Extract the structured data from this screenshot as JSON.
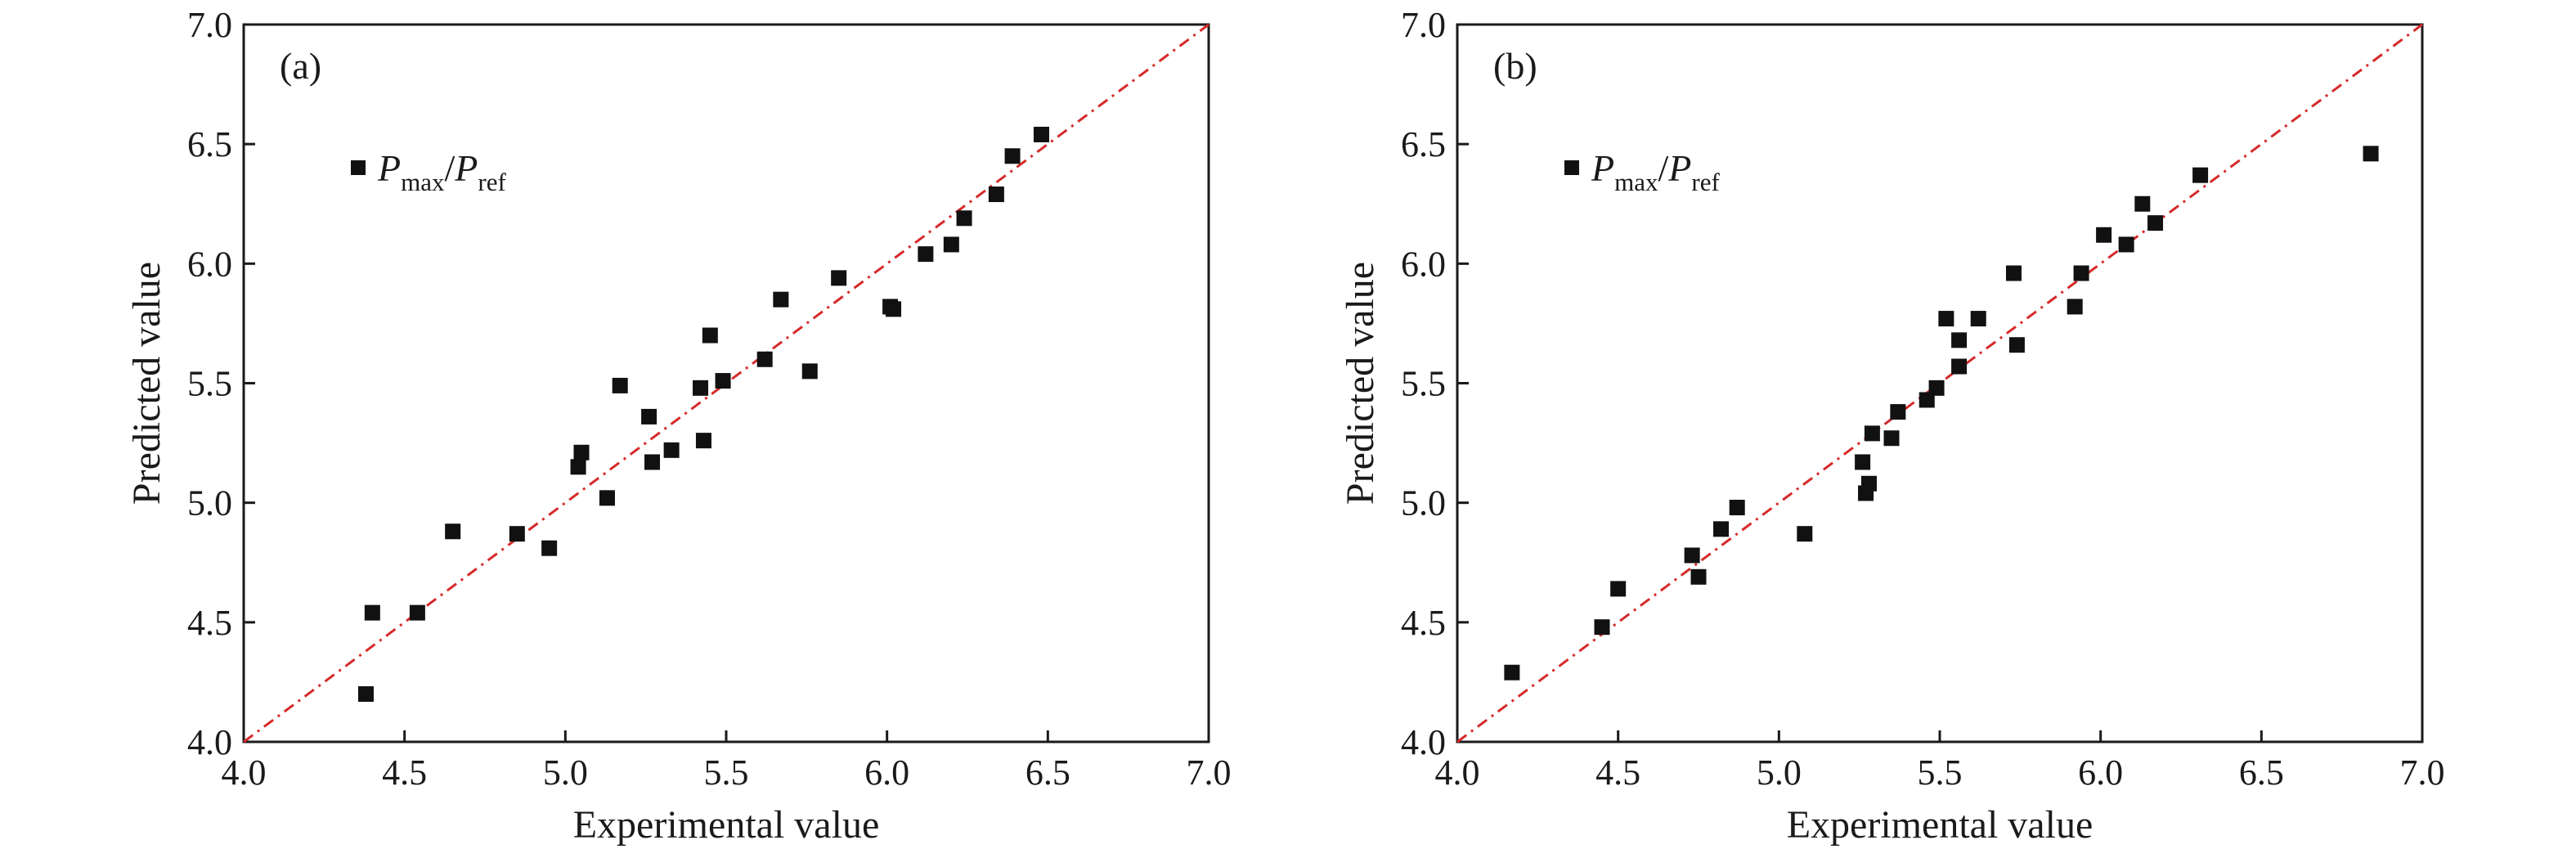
{
  "chart_data": [
    {
      "type": "scatter",
      "panel_label": "(a)",
      "xlabel": "Experimental value",
      "ylabel": "Predicted value",
      "xlim": [
        4.0,
        7.0
      ],
      "ylim": [
        4.0,
        7.0
      ],
      "xticks": [
        "4.0",
        "4.5",
        "5.0",
        "5.5",
        "6.0",
        "6.5",
        "7.0"
      ],
      "yticks": [
        "4.0",
        "4.5",
        "5.0",
        "5.5",
        "6.0",
        "6.5",
        "7.0"
      ],
      "grid": false,
      "legend_position": "upper-left",
      "legend": {
        "symbol": "P",
        "sub1": "max",
        "sep": "/",
        "symbol2": "P",
        "sub2": "ref"
      },
      "reference_line": {
        "from": [
          4.0,
          4.0
        ],
        "to": [
          7.0,
          7.0
        ],
        "style": "dash-dot",
        "color": "#d62a2a"
      },
      "marker_color": "#111111",
      "x": [
        4.38,
        4.4,
        4.54,
        4.65,
        4.85,
        4.95,
        5.04,
        5.05,
        5.13,
        5.17,
        5.26,
        5.27,
        5.33,
        5.42,
        5.43,
        5.45,
        5.49,
        5.62,
        5.67,
        5.76,
        5.85,
        6.01,
        6.02,
        6.12,
        6.2,
        6.24,
        6.34,
        6.39,
        6.48
      ],
      "y": [
        4.2,
        4.54,
        4.54,
        4.88,
        4.87,
        4.81,
        5.15,
        5.21,
        5.02,
        5.49,
        5.36,
        5.17,
        5.22,
        5.48,
        5.26,
        5.7,
        5.51,
        5.6,
        5.85,
        5.55,
        5.94,
        5.82,
        5.81,
        6.04,
        6.08,
        6.19,
        6.29,
        6.45,
        6.54
      ]
    },
    {
      "type": "scatter",
      "panel_label": "(b)",
      "xlabel": "Experimental value",
      "ylabel": "Predicted value",
      "xlim": [
        4.0,
        7.0
      ],
      "ylim": [
        4.0,
        7.0
      ],
      "xticks": [
        "4.0",
        "4.5",
        "5.0",
        "5.5",
        "6.0",
        "6.5",
        "7.0"
      ],
      "yticks": [
        "4.0",
        "4.5",
        "5.0",
        "5.5",
        "6.0",
        "6.5",
        "7.0"
      ],
      "grid": false,
      "legend_position": "upper-left",
      "legend": {
        "symbol": "P",
        "sub1": "max",
        "sep": "/",
        "symbol2": "P",
        "sub2": "ref"
      },
      "reference_line": {
        "from": [
          4.0,
          4.0
        ],
        "to": [
          7.0,
          7.0
        ],
        "style": "dash-dot",
        "color": "#d62a2a"
      },
      "marker_color": "#111111",
      "x": [
        4.17,
        4.45,
        4.5,
        4.73,
        4.75,
        4.82,
        4.87,
        5.08,
        5.26,
        5.27,
        5.28,
        5.29,
        5.35,
        5.37,
        5.46,
        5.49,
        5.52,
        5.56,
        5.56,
        5.62,
        5.73,
        5.74,
        5.92,
        5.94,
        6.01,
        6.08,
        6.13,
        6.17,
        6.31,
        6.84
      ],
      "y": [
        4.29,
        4.48,
        4.64,
        4.78,
        4.69,
        4.89,
        4.98,
        4.87,
        5.17,
        5.04,
        5.08,
        5.29,
        5.27,
        5.38,
        5.43,
        5.48,
        5.77,
        5.68,
        5.57,
        5.77,
        5.96,
        5.66,
        5.82,
        5.96,
        6.12,
        6.08,
        6.25,
        6.17,
        6.37,
        6.46
      ]
    }
  ]
}
